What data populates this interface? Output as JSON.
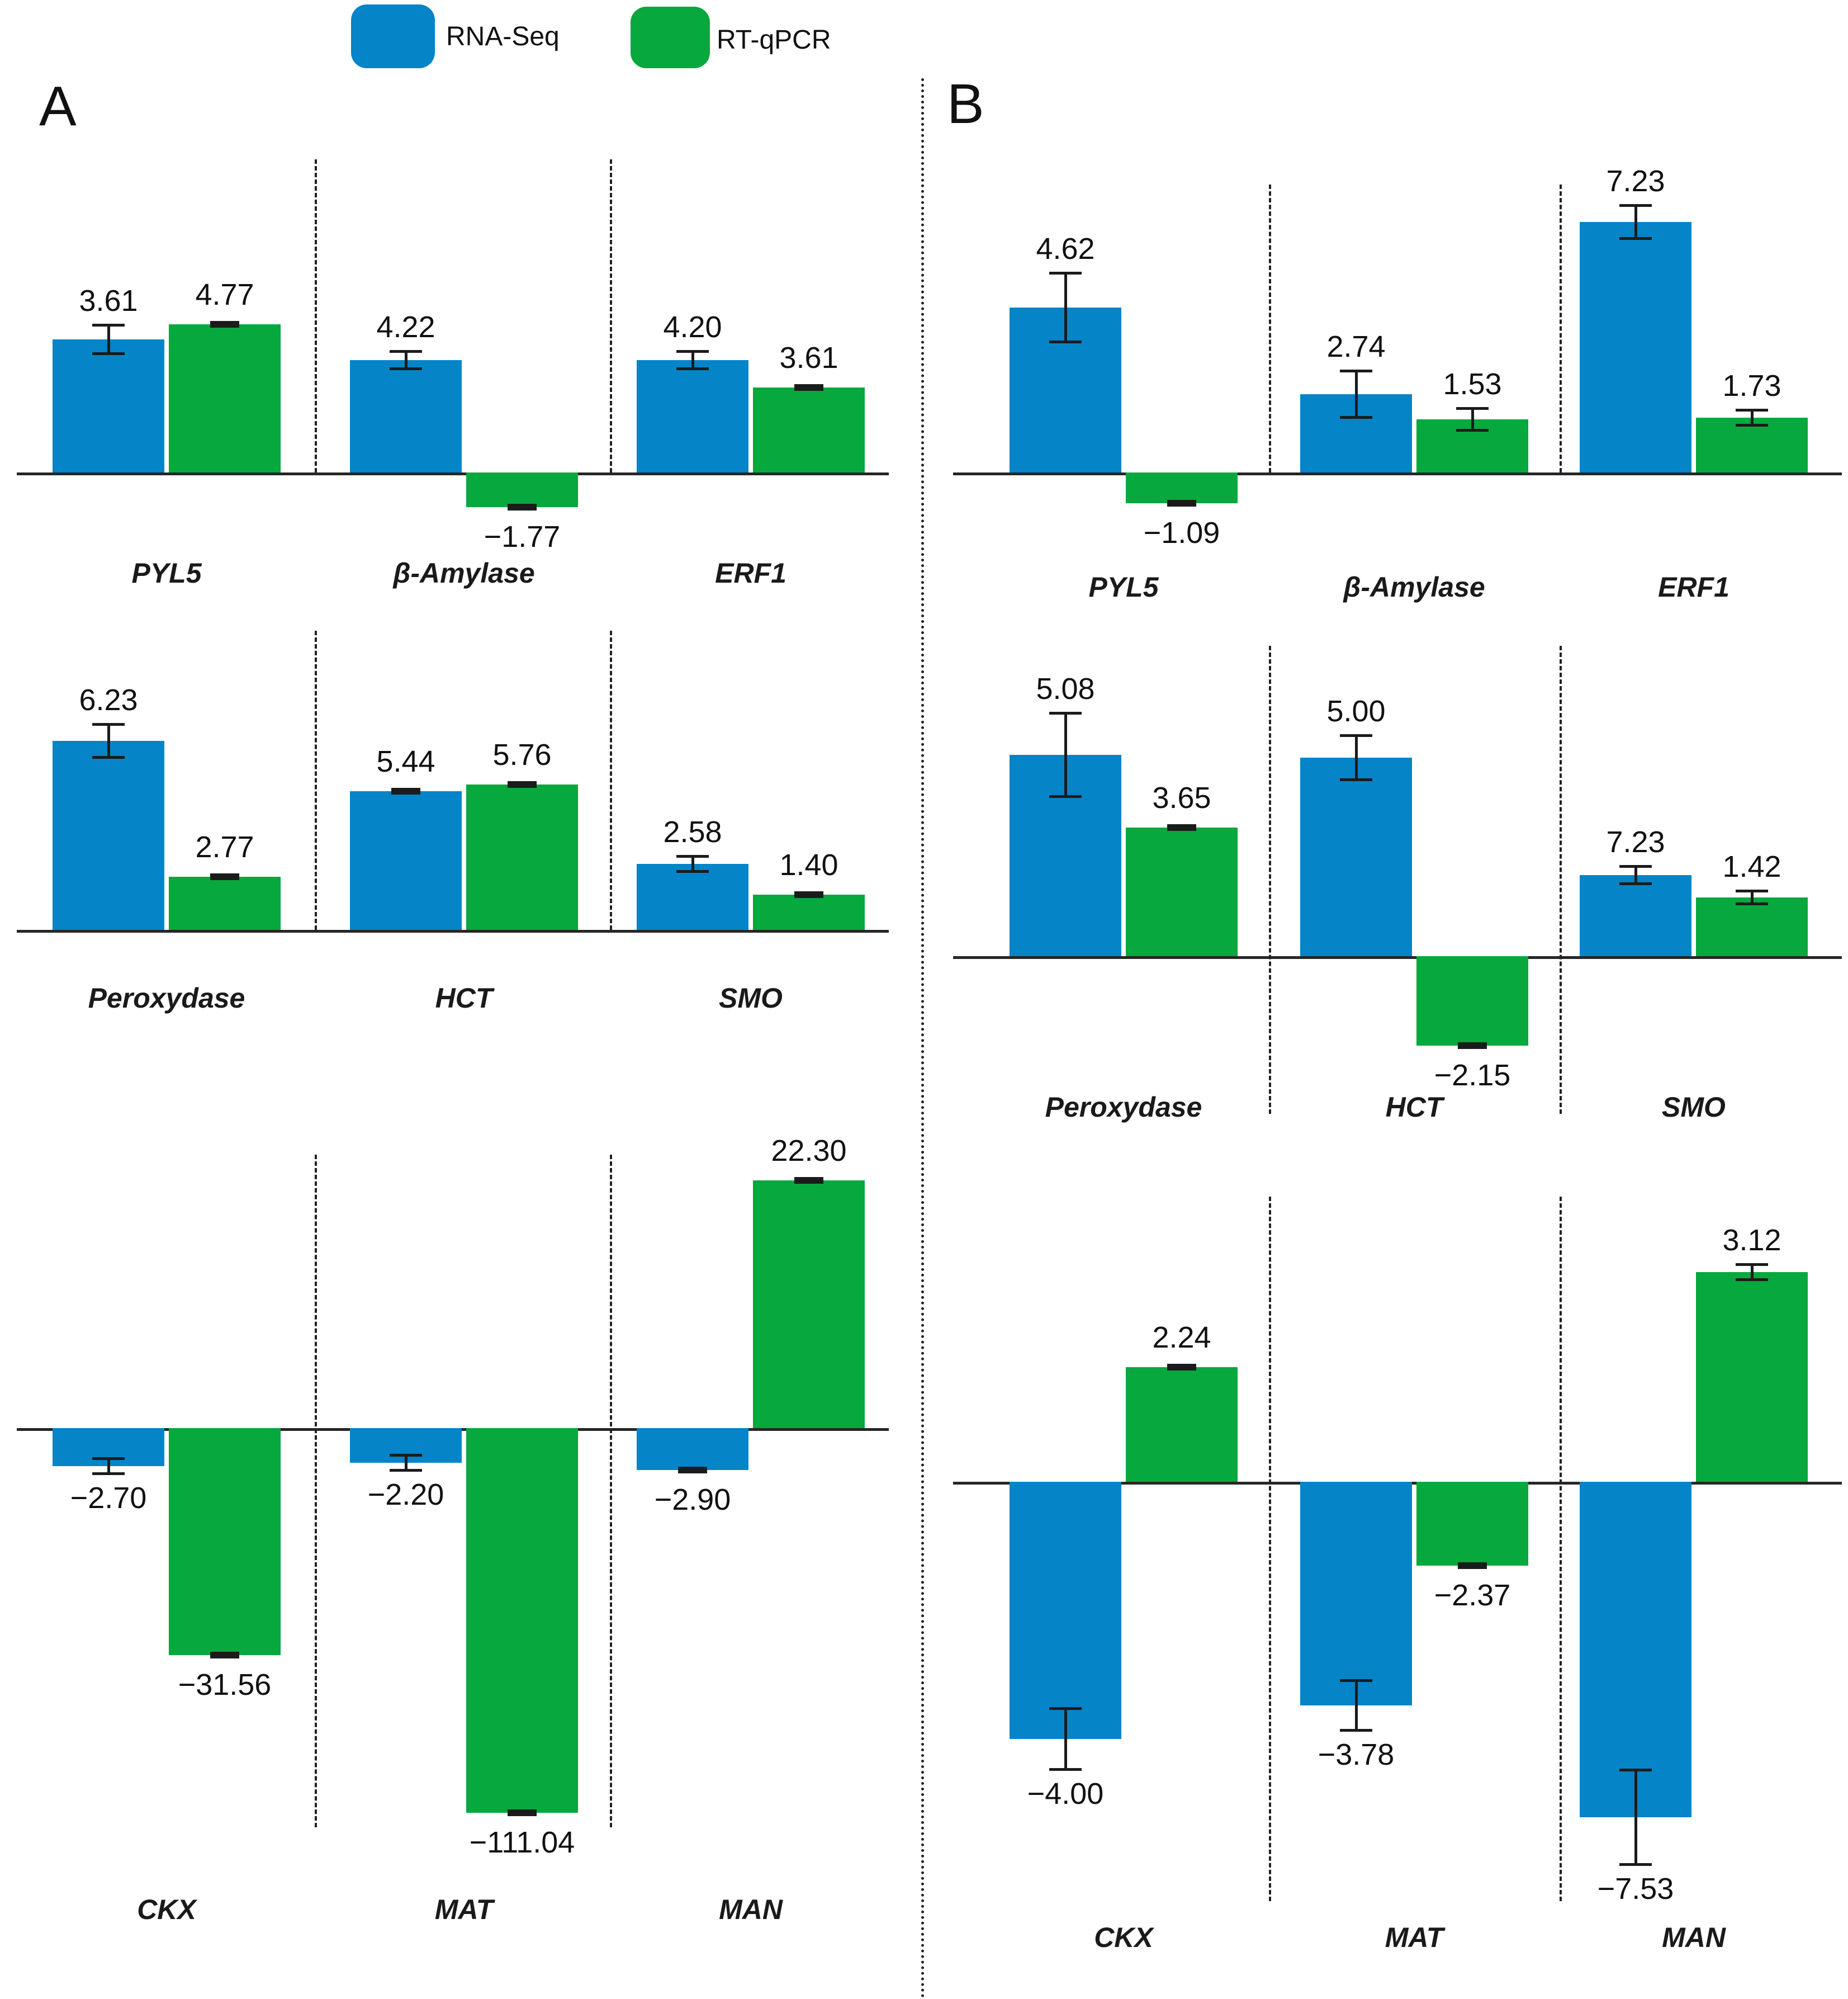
{
  "legend": [
    {
      "label": "RNA-Seq",
      "color": "#0584C8"
    },
    {
      "label": "RT-qPCR",
      "color": "#07A83E"
    }
  ],
  "panel_labels": {
    "a": "A",
    "b": "B"
  },
  "chart_data": {
    "type": "bar",
    "title": "",
    "series": [
      "RNA-Seq",
      "RT-qPCR"
    ],
    "colors": [
      "#0584C8",
      "#07A83E"
    ],
    "axis": {
      "y_ticks": "none",
      "baseline": 0,
      "grid": false,
      "legend_position": "top",
      "value_labels": true,
      "error_bars": true
    },
    "panels": [
      {
        "label": "A",
        "rows": [
          {
            "axis_y": 845,
            "axis_x1": 30,
            "axis_x2": 1590,
            "sep_x": [
              563,
              1091
            ],
            "sep_y1": 285,
            "sep_y2": 845,
            "gene_y": 1000,
            "groups": [
              {
                "gene": "PYL5",
                "cx": 298,
                "values": [
                  3.61,
                  4.77
                ],
                "h": [
                  238,
                  265
                ],
                "err": [
                  {
                    "t": "i",
                    "e": 26
                  },
                  {
                    "t": "d"
                  }
                ]
              },
              {
                "gene": "β-Amylase",
                "cx": 830,
                "values": [
                  4.22,
                  -1.77
                ],
                "h": [
                  201,
                  -62
                ],
                "err": [
                  {
                    "t": "i",
                    "e": 16
                  },
                  {
                    "t": "d"
                  }
                ]
              },
              {
                "gene": "ERF1",
                "cx": 1343,
                "values": [
                  4.2,
                  3.61
                ],
                "h": [
                  201,
                  152
                ],
                "err": [
                  {
                    "t": "i",
                    "e": 16
                  },
                  {
                    "t": "d"
                  }
                ]
              }
            ]
          },
          {
            "axis_y": 1663,
            "axis_x1": 30,
            "axis_x2": 1590,
            "sep_x": [
              563,
              1091
            ],
            "sep_y1": 1128,
            "sep_y2": 1663,
            "gene_y": 1760,
            "groups": [
              {
                "gene": "Peroxydase",
                "cx": 298,
                "values": [
                  6.23,
                  2.77
                ],
                "h": [
                  338,
                  95
                ],
                "err": [
                  {
                    "t": "i",
                    "e": 30
                  },
                  {
                    "t": "d"
                  }
                ]
              },
              {
                "gene": "HCT",
                "cx": 830,
                "values": [
                  5.44,
                  5.76
                ],
                "h": [
                  248,
                  260
                ],
                "err": [
                  {
                    "t": "d"
                  },
                  {
                    "t": "d"
                  }
                ]
              },
              {
                "gene": "SMO",
                "cx": 1343,
                "values": [
                  2.58,
                  1.4
                ],
                "h": [
                  118,
                  63
                ],
                "err": [
                  {
                    "t": "i",
                    "e": 14
                  },
                  {
                    "t": "d"
                  }
                ]
              }
            ]
          },
          {
            "axis_y": 2554,
            "axis_x1": 30,
            "axis_x2": 1590,
            "sep_x": [
              563,
              1091
            ],
            "sep_y1": 2065,
            "sep_y2": 3268,
            "gene_y": 3390,
            "groups": [
              {
                "gene": "CKX",
                "cx": 298,
                "values": [
                  -2.7,
                  -31.56
                ],
                "h": [
                  -68,
                  -406
                ],
                "err": [
                  {
                    "t": "i",
                    "e": 14
                  },
                  {
                    "t": "d"
                  }
                ]
              },
              {
                "gene": "MAT",
                "cx": 830,
                "values": [
                  -2.2,
                  -111.04
                ],
                "h": [
                  -62,
                  -688
                ],
                "err": [
                  {
                    "t": "i",
                    "e": 14
                  },
                  {
                    "t": "d"
                  }
                ]
              },
              {
                "gene": "MAN",
                "cx": 1343,
                "values": [
                  -2.9,
                  22.3
                ],
                "h": [
                  -75,
                  443
                ],
                "err": [
                  {
                    "t": "d"
                  },
                  {
                    "t": "d"
                  }
                ]
              }
            ]
          }
        ]
      },
      {
        "label": "B",
        "rows": [
          {
            "axis_y": 845,
            "axis_x1": 1705,
            "axis_x2": 3295,
            "sep_x": [
              2270,
              2790
            ],
            "sep_y1": 330,
            "sep_y2": 845,
            "gene_y": 1025,
            "groups": [
              {
                "gene": "PYL5",
                "cx": 2010,
                "values": [
                  4.62,
                  -1.09
                ],
                "h": [
                  295,
                  -55
                ],
                "err": [
                  {
                    "t": "i",
                    "e": 62
                  },
                  {
                    "t": "d"
                  }
                ]
              },
              {
                "gene": "β-Amylase",
                "cx": 2530,
                "values": [
                  2.74,
                  1.53
                ],
                "h": [
                  140,
                  95
                ],
                "err": [
                  {
                    "t": "i",
                    "e": 42
                  },
                  {
                    "t": "i",
                    "e": 20
                  }
                ]
              },
              {
                "gene": "ERF1",
                "cx": 3030,
                "values": [
                  7.23,
                  1.73
                ],
                "h": [
                  448,
                  98
                ],
                "err": [
                  {
                    "t": "i",
                    "e": 30
                  },
                  {
                    "t": "i",
                    "e": 14
                  }
                ]
              }
            ]
          },
          {
            "axis_y": 1710,
            "axis_x1": 1705,
            "axis_x2": 3295,
            "sep_x": [
              2270,
              2790
            ],
            "sep_y1": 1155,
            "sep_y2": 1992,
            "gene_y": 1955,
            "groups": [
              {
                "gene": "Peroxydase",
                "cx": 2010,
                "values": [
                  5.08,
                  3.65
                ],
                "h": [
                  360,
                  230
                ],
                "err": [
                  {
                    "t": "i",
                    "e": 75
                  },
                  {
                    "t": "d"
                  }
                ]
              },
              {
                "gene": "HCT",
                "cx": 2530,
                "values": [
                  5.0,
                  -2.15
                ],
                "h": [
                  355,
                  -160
                ],
                "err": [
                  {
                    "t": "i",
                    "e": 40
                  },
                  {
                    "t": "d"
                  }
                ]
              },
              {
                "gene": "SMO",
                "cx": 3030,
                "values": [
                  7.23,
                  1.42
                ],
                "h": [
                  145,
                  105
                ],
                "err": [
                  {
                    "t": "i",
                    "e": 16
                  },
                  {
                    "t": "i",
                    "e": 12
                  }
                ]
              }
            ]
          },
          {
            "axis_y": 2650,
            "axis_x1": 1705,
            "axis_x2": 3295,
            "sep_x": [
              2270,
              2790
            ],
            "sep_y1": 2140,
            "sep_y2": 3400,
            "gene_y": 3440,
            "groups": [
              {
                "gene": "CKX",
                "cx": 2010,
                "values": [
                  -4.0,
                  2.24
                ],
                "h": [
                  -460,
                  205
                ],
                "err": [
                  {
                    "t": "i",
                    "e": 55
                  },
                  {
                    "t": "d"
                  }
                ]
              },
              {
                "gene": "MAT",
                "cx": 2530,
                "values": [
                  -3.78,
                  -2.37
                ],
                "h": [
                  -400,
                  -150
                ],
                "err": [
                  {
                    "t": "i",
                    "e": 45
                  },
                  {
                    "t": "d"
                  }
                ]
              },
              {
                "gene": "MAN",
                "cx": 3030,
                "values": [
                  -7.53,
                  3.12
                ],
                "h": [
                  -600,
                  375
                ],
                "err": [
                  {
                    "t": "i",
                    "e": 85
                  },
                  {
                    "t": "i",
                    "e": 14
                  }
                ]
              }
            ]
          }
        ]
      }
    ]
  }
}
